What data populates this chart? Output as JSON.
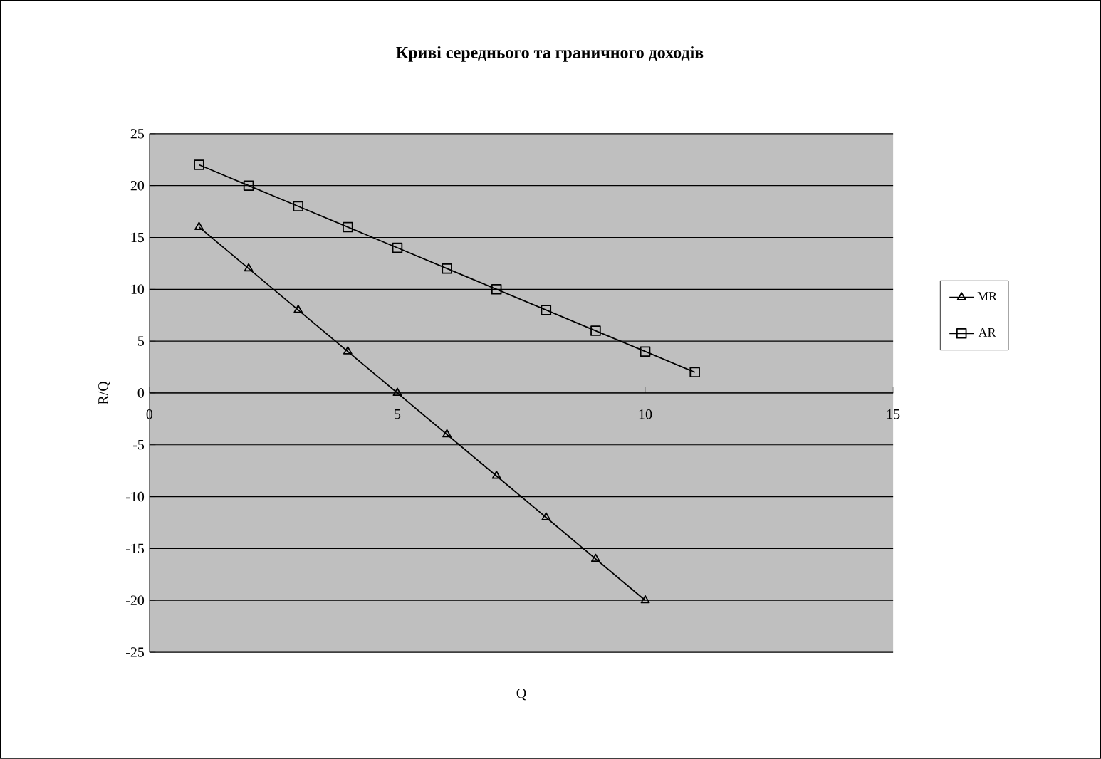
{
  "chart_data": {
    "type": "line",
    "title": "Криві середнього та граничного доходів",
    "xlabel": "Q",
    "ylabel": "R/Q",
    "xlim": [
      0,
      15
    ],
    "xticks": [
      0,
      5,
      10,
      15
    ],
    "ylim": [
      -25,
      25
    ],
    "yticks": [
      -25,
      -20,
      -15,
      -10,
      -5,
      0,
      5,
      10,
      15,
      20,
      25
    ],
    "grid": "y",
    "legend": "right",
    "line_style": "solid",
    "series": [
      {
        "name": "MR",
        "color": "#000000",
        "marker": "triangle",
        "x": [
          1,
          2,
          3,
          4,
          5,
          6,
          7,
          8,
          9,
          10
        ],
        "values": [
          16,
          12,
          8,
          4,
          0,
          -4,
          -8,
          -12,
          -16,
          -20
        ]
      },
      {
        "name": "AR",
        "color": "#000000",
        "marker": "square",
        "x": [
          1,
          2,
          3,
          4,
          5,
          6,
          7,
          8,
          9,
          10,
          11
        ],
        "values": [
          22,
          20,
          18,
          16,
          14,
          12,
          10,
          8,
          6,
          4,
          2
        ]
      }
    ]
  }
}
